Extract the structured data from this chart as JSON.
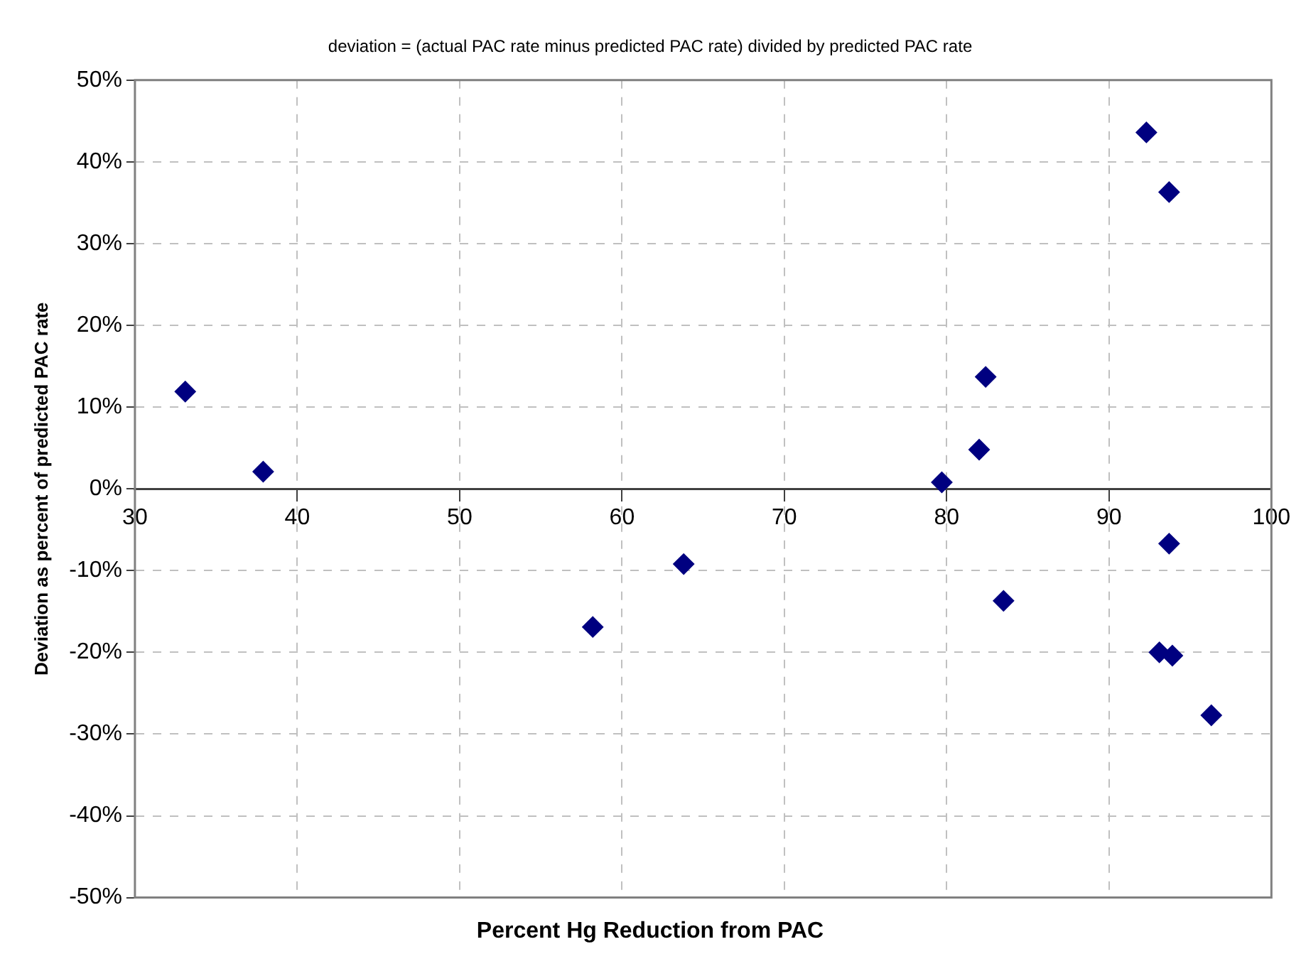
{
  "chart_data": {
    "type": "scatter",
    "title": "deviation = (actual PAC rate minus predicted PAC rate) divided by predicted PAC rate",
    "xlabel": "Percent Hg Reduction from PAC",
    "ylabel": "Deviation as percent of predicted PAC rate",
    "x": [
      33.1,
      37.9,
      58.2,
      63.8,
      92.3,
      93.7,
      82.4,
      82.0,
      79.7,
      93.7,
      83.5,
      93.1,
      93.9,
      96.3
    ],
    "series": [
      {
        "color": "#000080",
        "values": [
          11.9,
          2.1,
          -16.9,
          -9.2,
          43.6,
          36.3,
          13.7,
          4.8,
          0.8,
          -6.7,
          -13.7,
          -20.0,
          -20.4,
          -27.7
        ]
      }
    ],
    "xlim": [
      30,
      100
    ],
    "xticks": [
      30,
      40,
      50,
      60,
      70,
      80,
      90,
      100
    ],
    "ylim": [
      -50,
      50
    ],
    "yticks": [
      {
        "value": -50,
        "label": "-50%"
      },
      {
        "value": -40,
        "label": "-40%"
      },
      {
        "value": -30,
        "label": "-30%"
      },
      {
        "value": -20,
        "label": "-20%"
      },
      {
        "value": -10,
        "label": "-10%"
      },
      {
        "value": 0,
        "label": "0%"
      },
      {
        "value": 10,
        "label": "10%"
      },
      {
        "value": 20,
        "label": "20%"
      },
      {
        "value": 30,
        "label": "30%"
      },
      {
        "value": 40,
        "label": "40%"
      },
      {
        "value": 50,
        "label": "50%"
      }
    ],
    "grid": true,
    "legend": false,
    "marker": "diamond"
  }
}
